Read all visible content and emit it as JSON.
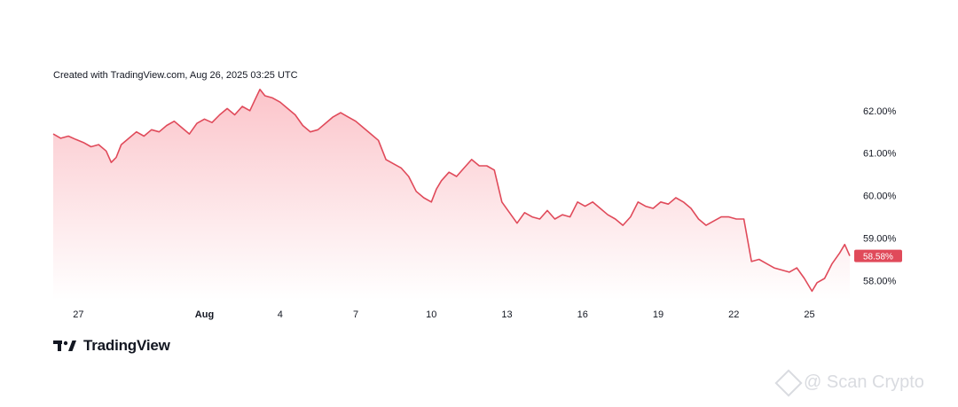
{
  "header": {
    "created_text": "Created with TradingView.com, Aug 26, 2025 03:25 UTC"
  },
  "brand": {
    "name": "TradingView"
  },
  "watermark": {
    "text": "@ Scan Crypto",
    "logo": "binance-diamond-icon"
  },
  "colors": {
    "line": "#e04a5a",
    "fill_top": "#fbc1c7",
    "fill_bottom": "#ffffff",
    "tag": "#e04a5a"
  },
  "chart_data": {
    "type": "area",
    "title": "",
    "xlabel": "",
    "ylabel": "",
    "x_range": [
      26,
      57.6
    ],
    "ylim": [
      57.55,
      62.6
    ],
    "x_ticks": [
      {
        "x": 27,
        "label": "27"
      },
      {
        "x": 32,
        "label": "Aug"
      },
      {
        "x": 35,
        "label": "4"
      },
      {
        "x": 38,
        "label": "7"
      },
      {
        "x": 41,
        "label": "10"
      },
      {
        "x": 44,
        "label": "13"
      },
      {
        "x": 47,
        "label": "16"
      },
      {
        "x": 50,
        "label": "19"
      },
      {
        "x": 53,
        "label": "22"
      },
      {
        "x": 56,
        "label": "25"
      }
    ],
    "y_ticks": [
      {
        "y": 62,
        "label": "62.00%"
      },
      {
        "y": 61,
        "label": "61.00%"
      },
      {
        "y": 60,
        "label": "60.00%"
      },
      {
        "y": 59,
        "label": "59.00%"
      },
      {
        "y": 58,
        "label": "58.00%"
      }
    ],
    "last_value_label": "58.58%",
    "last_value": 58.58,
    "series": [
      {
        "points": [
          [
            26.0,
            61.45
          ],
          [
            26.3,
            61.35
          ],
          [
            26.6,
            61.4
          ],
          [
            26.9,
            61.32
          ],
          [
            27.2,
            61.25
          ],
          [
            27.5,
            61.15
          ],
          [
            27.8,
            61.2
          ],
          [
            28.1,
            61.05
          ],
          [
            28.3,
            60.78
          ],
          [
            28.5,
            60.9
          ],
          [
            28.7,
            61.2
          ],
          [
            29.0,
            61.35
          ],
          [
            29.3,
            61.5
          ],
          [
            29.6,
            61.4
          ],
          [
            29.9,
            61.55
          ],
          [
            30.2,
            61.5
          ],
          [
            30.5,
            61.65
          ],
          [
            30.8,
            61.75
          ],
          [
            31.1,
            61.6
          ],
          [
            31.4,
            61.45
          ],
          [
            31.7,
            61.7
          ],
          [
            32.0,
            61.8
          ],
          [
            32.3,
            61.72
          ],
          [
            32.6,
            61.9
          ],
          [
            32.9,
            62.05
          ],
          [
            33.2,
            61.9
          ],
          [
            33.5,
            62.1
          ],
          [
            33.8,
            62.0
          ],
          [
            34.0,
            62.25
          ],
          [
            34.2,
            62.5
          ],
          [
            34.4,
            62.35
          ],
          [
            34.7,
            62.3
          ],
          [
            35.0,
            62.2
          ],
          [
            35.3,
            62.05
          ],
          [
            35.6,
            61.9
          ],
          [
            35.9,
            61.65
          ],
          [
            36.2,
            61.5
          ],
          [
            36.5,
            61.55
          ],
          [
            36.8,
            61.7
          ],
          [
            37.1,
            61.85
          ],
          [
            37.4,
            61.95
          ],
          [
            37.7,
            61.85
          ],
          [
            38.0,
            61.75
          ],
          [
            38.3,
            61.6
          ],
          [
            38.6,
            61.45
          ],
          [
            38.9,
            61.3
          ],
          [
            39.2,
            60.85
          ],
          [
            39.5,
            60.75
          ],
          [
            39.8,
            60.65
          ],
          [
            40.1,
            60.45
          ],
          [
            40.4,
            60.1
          ],
          [
            40.7,
            59.95
          ],
          [
            41.0,
            59.85
          ],
          [
            41.2,
            60.15
          ],
          [
            41.4,
            60.35
          ],
          [
            41.7,
            60.55
          ],
          [
            42.0,
            60.45
          ],
          [
            42.3,
            60.65
          ],
          [
            42.6,
            60.85
          ],
          [
            42.9,
            60.7
          ],
          [
            43.2,
            60.7
          ],
          [
            43.5,
            60.6
          ],
          [
            43.8,
            59.85
          ],
          [
            44.1,
            59.6
          ],
          [
            44.4,
            59.35
          ],
          [
            44.7,
            59.6
          ],
          [
            45.0,
            59.5
          ],
          [
            45.3,
            59.45
          ],
          [
            45.6,
            59.65
          ],
          [
            45.9,
            59.45
          ],
          [
            46.2,
            59.55
          ],
          [
            46.5,
            59.5
          ],
          [
            46.8,
            59.85
          ],
          [
            47.1,
            59.75
          ],
          [
            47.4,
            59.85
          ],
          [
            47.7,
            59.7
          ],
          [
            48.0,
            59.55
          ],
          [
            48.3,
            59.45
          ],
          [
            48.6,
            59.3
          ],
          [
            48.9,
            59.5
          ],
          [
            49.2,
            59.85
          ],
          [
            49.5,
            59.75
          ],
          [
            49.8,
            59.7
          ],
          [
            50.1,
            59.85
          ],
          [
            50.4,
            59.8
          ],
          [
            50.7,
            59.95
          ],
          [
            51.0,
            59.85
          ],
          [
            51.3,
            59.7
          ],
          [
            51.6,
            59.45
          ],
          [
            51.9,
            59.3
          ],
          [
            52.2,
            59.4
          ],
          [
            52.5,
            59.5
          ],
          [
            52.8,
            59.5
          ],
          [
            53.1,
            59.45
          ],
          [
            53.4,
            59.45
          ],
          [
            53.7,
            58.45
          ],
          [
            54.0,
            58.5
          ],
          [
            54.3,
            58.4
          ],
          [
            54.6,
            58.3
          ],
          [
            54.9,
            58.25
          ],
          [
            55.2,
            58.2
          ],
          [
            55.5,
            58.3
          ],
          [
            55.8,
            58.05
          ],
          [
            56.1,
            57.75
          ],
          [
            56.3,
            57.95
          ],
          [
            56.6,
            58.05
          ],
          [
            56.9,
            58.4
          ],
          [
            57.2,
            58.65
          ],
          [
            57.4,
            58.85
          ],
          [
            57.6,
            58.58
          ]
        ]
      }
    ],
    "grid": false,
    "legend": "none"
  }
}
